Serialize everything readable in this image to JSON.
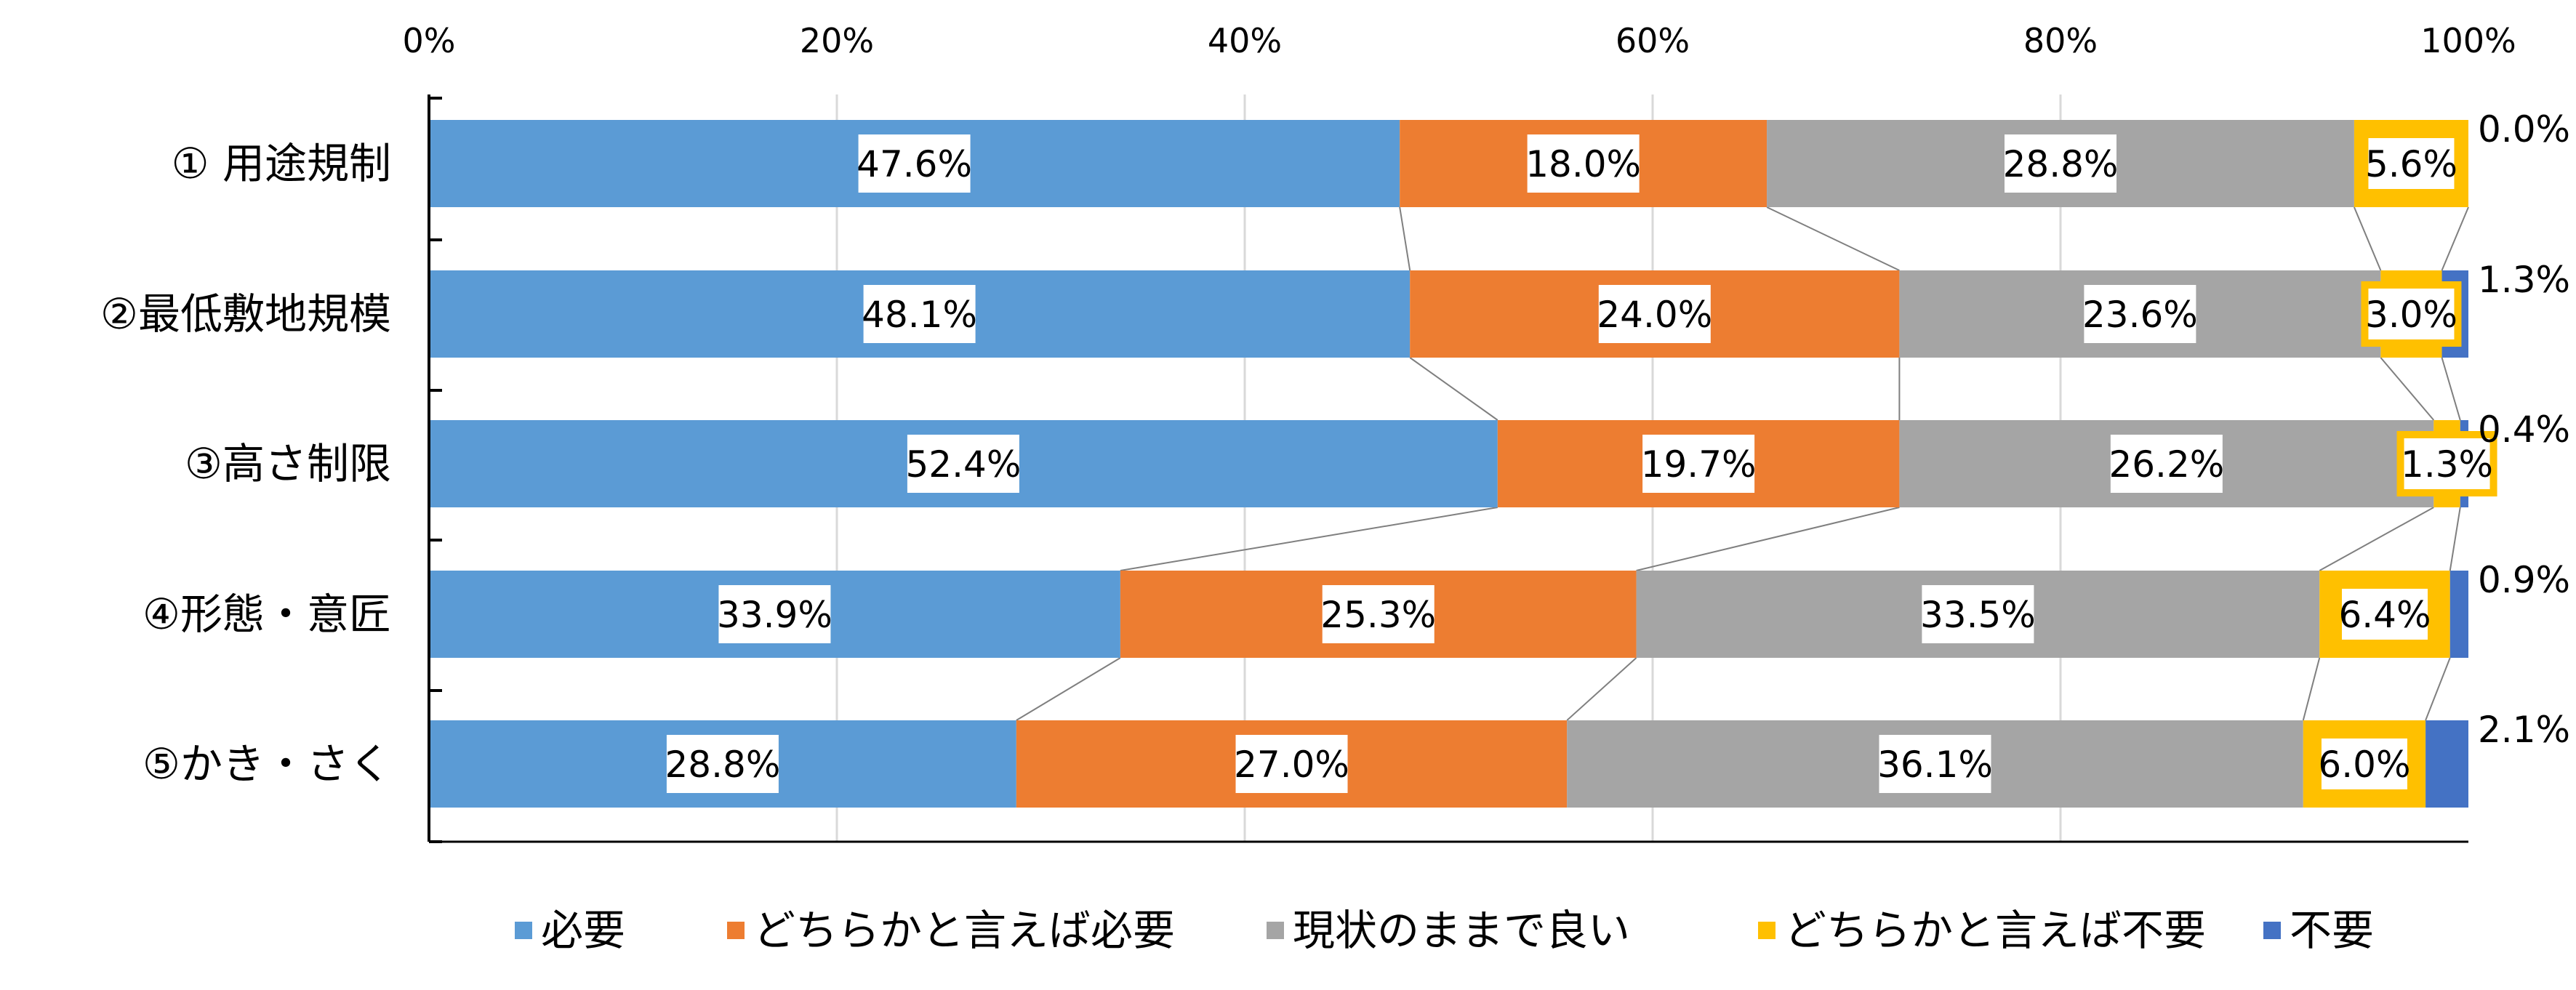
{
  "chart_data": {
    "type": "bar",
    "orientation": "horizontal",
    "stacked": true,
    "categories": [
      "① 用途規制",
      "②最低敷地規模",
      "③高さ制限",
      "④形態・意匠",
      "⑤かき・さく"
    ],
    "series": [
      {
        "name": "必要",
        "color": "#5B9BD5",
        "values": [
          47.6,
          48.1,
          52.4,
          33.9,
          28.8
        ]
      },
      {
        "name": "どちらかと言えば必要",
        "color": "#ED7D31",
        "values": [
          18.0,
          24.0,
          19.7,
          25.3,
          27.0
        ]
      },
      {
        "name": "現状のままで良い",
        "color": "#A5A5A5",
        "values": [
          28.8,
          23.6,
          26.2,
          33.5,
          36.1
        ]
      },
      {
        "name": "どちらかと言えば不要",
        "color": "#FFC000",
        "values": [
          5.6,
          3.0,
          1.3,
          6.4,
          6.0
        ]
      },
      {
        "name": "不要",
        "color": "#4472C4",
        "values": [
          0.0,
          1.3,
          0.4,
          0.9,
          2.1
        ]
      }
    ],
    "value_labels": [
      [
        "47.6%",
        "18.0%",
        "28.8%",
        "5.6%",
        "0.0%"
      ],
      [
        "48.1%",
        "24.0%",
        "23.6%",
        "3.0%",
        "1.3%"
      ],
      [
        "52.4%",
        "19.7%",
        "26.2%",
        "1.3%",
        "0.4%"
      ],
      [
        "33.9%",
        "25.3%",
        "33.5%",
        "6.4%",
        "0.9%"
      ],
      [
        "28.8%",
        "27.0%",
        "36.1%",
        "6.0%",
        "2.1%"
      ]
    ],
    "xaxis": {
      "ticks": [
        "0%",
        "20%",
        "40%",
        "60%",
        "80%",
        "100%"
      ],
      "range": [
        0,
        100
      ],
      "position": "top"
    },
    "grid": true,
    "series_lines": true,
    "legend": {
      "position": "bottom"
    }
  }
}
